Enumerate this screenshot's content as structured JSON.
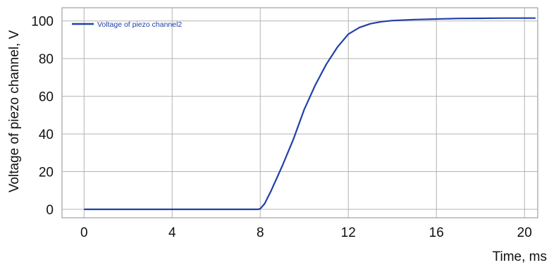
{
  "chart_data": {
    "type": "line",
    "xlabel": "Time, ms",
    "ylabel": "Voltage of piezo channel, V",
    "xlim": [
      -1,
      20.6
    ],
    "ylim": [
      -4.5,
      107
    ],
    "xticks": [
      0,
      4,
      8,
      12,
      16,
      20
    ],
    "yticks": [
      0,
      20,
      40,
      60,
      80,
      100
    ],
    "grid": true,
    "legend_position": "top-left",
    "series": [
      {
        "name": "Voltage of piezo channel2",
        "color": "#2040a8",
        "x": [
          0,
          2,
          4,
          6,
          7.9,
          8.0,
          8.2,
          8.5,
          9.0,
          9.5,
          10.0,
          10.5,
          11.0,
          11.5,
          12.0,
          12.5,
          13.0,
          13.5,
          14.0,
          15.0,
          16.0,
          17.0,
          18.0,
          19.0,
          20.0,
          20.5
        ],
        "y": [
          0,
          0,
          0,
          0,
          0,
          0.3,
          3,
          10,
          23,
          37,
          53,
          66,
          77,
          86,
          93,
          96.5,
          98.5,
          99.6,
          100.2,
          100.7,
          101,
          101.3,
          101.4,
          101.5,
          101.5,
          101.5
        ]
      }
    ]
  }
}
